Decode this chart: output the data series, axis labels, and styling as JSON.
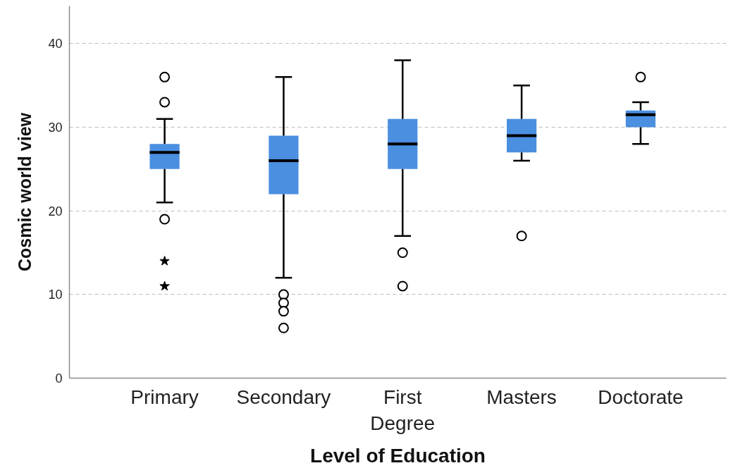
{
  "chart_data": {
    "type": "box",
    "xlabel": "Level of Education",
    "ylabel": "Cosmic world view",
    "categories": [
      "Primary",
      "Secondary",
      "First\nDegree",
      "Masters",
      "Doctorate"
    ],
    "series": [
      {
        "color": "#4a8fe0",
        "boxes": [
          {
            "low": 21,
            "q1": 25,
            "median": 27,
            "q3": 28,
            "high": 31,
            "outliers": [
              36,
              33,
              19
            ]
          },
          {
            "low": 12,
            "q1": 22,
            "median": 26,
            "q3": 29,
            "high": 36,
            "outliers": [
              10,
              9,
              8,
              6
            ]
          },
          {
            "low": 17,
            "q1": 25,
            "median": 28,
            "q3": 31,
            "high": 38,
            "outliers": [
              15,
              11
            ]
          },
          {
            "low": 26,
            "q1": 27,
            "median": 29,
            "q3": 31,
            "high": 35,
            "outliers": [
              17
            ]
          },
          {
            "low": 28,
            "q1": 30,
            "median": 31.5,
            "q3": 32,
            "high": 33,
            "outliers": [
              36
            ]
          }
        ]
      },
      {
        "type": "scatter",
        "marker": "star",
        "color": "#000000",
        "x": [
          "Primary",
          "Primary"
        ],
        "values": [
          14,
          11
        ]
      }
    ],
    "ylim": [
      0,
      44.5
    ],
    "yticks": [
      0,
      10,
      20,
      30,
      40
    ],
    "grid": "y"
  }
}
